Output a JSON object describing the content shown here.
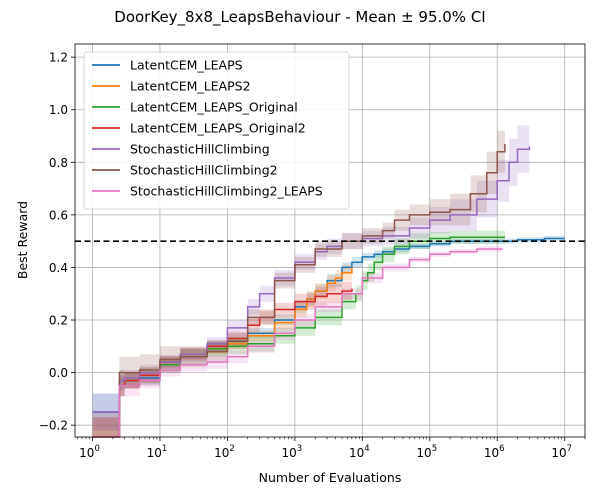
{
  "chart_data": {
    "type": "line",
    "title": "DoorKey_8x8_LeapsBehaviour - Mean ± 95.0% CI",
    "xlabel": "Number of Evaluations",
    "ylabel": "Best Reward",
    "x_scale": "log",
    "xlim": [
      0.55,
      20000000
    ],
    "ylim": [
      -0.245,
      1.25
    ],
    "x_ticks": [
      {
        "value": 1,
        "base": "10",
        "exp": "0"
      },
      {
        "value": 10,
        "base": "10",
        "exp": "1"
      },
      {
        "value": 100,
        "base": "10",
        "exp": "2"
      },
      {
        "value": 1000,
        "base": "10",
        "exp": "3"
      },
      {
        "value": 10000,
        "base": "10",
        "exp": "4"
      },
      {
        "value": 100000,
        "base": "10",
        "exp": "5"
      },
      {
        "value": 1000000,
        "base": "10",
        "exp": "6"
      },
      {
        "value": 10000000,
        "base": "10",
        "exp": "7"
      }
    ],
    "y_ticks": [
      {
        "value": -0.2,
        "label": "−0.2"
      },
      {
        "value": 0.0,
        "label": "0.0"
      },
      {
        "value": 0.2,
        "label": "0.2"
      },
      {
        "value": 0.4,
        "label": "0.4"
      },
      {
        "value": 0.6,
        "label": "0.6"
      },
      {
        "value": 0.8,
        "label": "0.8"
      },
      {
        "value": 1.0,
        "label": "1.0"
      },
      {
        "value": 1.2,
        "label": "1.2"
      }
    ],
    "grid": true,
    "legend_position": "top-left",
    "reference_line": {
      "y": 0.5,
      "style": "dashed",
      "color": "#000000"
    },
    "series": [
      {
        "name": "LatentCEM_LEAPS",
        "color": "#1f77b4",
        "x": [
          1,
          2,
          2.5,
          3,
          5,
          10,
          20,
          50,
          100,
          200,
          500,
          1000,
          1500,
          2000,
          3000,
          5000,
          7000,
          10000,
          15000,
          20000,
          30000,
          50000,
          100000,
          200000,
          500000,
          1000000,
          2000000,
          5000000,
          10000000
        ],
        "y": [
          -0.15,
          -0.15,
          -0.05,
          -0.03,
          -0.02,
          0.04,
          0.07,
          0.1,
          0.12,
          0.15,
          0.2,
          0.25,
          0.28,
          0.31,
          0.35,
          0.4,
          0.42,
          0.44,
          0.45,
          0.46,
          0.47,
          0.48,
          0.49,
          0.5,
          0.5,
          0.5,
          0.505,
          0.51,
          0.51
        ],
        "ci": [
          0.07,
          0.07,
          0.04,
          0.03,
          0.025,
          0.02,
          0.02,
          0.02,
          0.02,
          0.02,
          0.02,
          0.025,
          0.025,
          0.025,
          0.025,
          0.02,
          0.02,
          0.015,
          0.015,
          0.012,
          0.012,
          0.01,
          0.01,
          0.01,
          0.01,
          0.01,
          0.01,
          0.01,
          0.01
        ]
      },
      {
        "name": "LatentCEM_LEAPS2",
        "color": "#ff7f0e",
        "x": [
          1,
          2,
          2.5,
          3,
          5,
          10,
          20,
          50,
          100,
          200,
          500,
          1000,
          1500,
          2000,
          3000,
          4000,
          5000,
          7000
        ],
        "y": [
          -0.25,
          -0.25,
          -0.05,
          -0.03,
          -0.01,
          0.04,
          0.07,
          0.09,
          0.11,
          0.14,
          0.19,
          0.24,
          0.28,
          0.31,
          0.34,
          0.36,
          0.38,
          0.4
        ],
        "ci": [
          0.08,
          0.08,
          0.04,
          0.03,
          0.025,
          0.02,
          0.02,
          0.02,
          0.02,
          0.02,
          0.025,
          0.03,
          0.03,
          0.03,
          0.03,
          0.03,
          0.03,
          0.03
        ]
      },
      {
        "name": "LatentCEM_LEAPS_Original",
        "color": "#2ca02c",
        "x": [
          1,
          2,
          2.5,
          3,
          5,
          10,
          20,
          50,
          100,
          200,
          500,
          1000,
          2000,
          5000,
          8000,
          10000,
          12000,
          15000,
          20000,
          30000,
          50000,
          100000,
          200000,
          500000,
          1000000,
          1300000
        ],
        "y": [
          -0.25,
          -0.25,
          -0.03,
          -0.03,
          -0.01,
          0.03,
          0.06,
          0.09,
          0.1,
          0.11,
          0.14,
          0.17,
          0.21,
          0.27,
          0.3,
          0.35,
          0.38,
          0.42,
          0.45,
          0.48,
          0.5,
          0.51,
          0.515,
          0.515,
          0.515,
          0.515
        ],
        "ci": [
          0.08,
          0.08,
          0.04,
          0.03,
          0.03,
          0.03,
          0.03,
          0.03,
          0.03,
          0.03,
          0.03,
          0.03,
          0.03,
          0.03,
          0.03,
          0.035,
          0.035,
          0.03,
          0.03,
          0.03,
          0.03,
          0.025,
          0.025,
          0.025,
          0.025,
          0.025
        ]
      },
      {
        "name": "LatentCEM_LEAPS_Original2",
        "color": "#d62728",
        "x": [
          1,
          2,
          2.5,
          3,
          5,
          10,
          20,
          50,
          100,
          200,
          300,
          500,
          1000,
          2000,
          3000,
          5000,
          7000
        ],
        "y": [
          -0.25,
          -0.25,
          -0.05,
          -0.03,
          -0.01,
          0.04,
          0.07,
          0.1,
          0.13,
          0.18,
          0.21,
          0.24,
          0.27,
          0.29,
          0.3,
          0.31,
          0.32
        ],
        "ci": [
          0.08,
          0.08,
          0.04,
          0.03,
          0.03,
          0.025,
          0.025,
          0.025,
          0.025,
          0.025,
          0.025,
          0.025,
          0.03,
          0.035,
          0.035,
          0.035,
          0.035
        ]
      },
      {
        "name": "StochasticHillClimbing",
        "color": "#9467bd",
        "x": [
          1,
          2,
          2.5,
          3,
          5,
          10,
          20,
          50,
          100,
          200,
          300,
          500,
          1000,
          2000,
          3000,
          5000,
          7000,
          10000,
          20000,
          50000,
          100000,
          200000,
          500000,
          1000000,
          1500000,
          2000000,
          3000000
        ],
        "y": [
          -0.15,
          -0.15,
          -0.03,
          -0.02,
          0.0,
          0.04,
          0.07,
          0.11,
          0.17,
          0.25,
          0.3,
          0.36,
          0.42,
          0.46,
          0.48,
          0.5,
          0.5,
          0.51,
          0.52,
          0.55,
          0.58,
          0.6,
          0.66,
          0.73,
          0.8,
          0.85,
          0.86
        ],
        "ci": [
          0.07,
          0.07,
          0.04,
          0.03,
          0.03,
          0.025,
          0.025,
          0.025,
          0.03,
          0.03,
          0.03,
          0.03,
          0.03,
          0.03,
          0.03,
          0.03,
          0.03,
          0.03,
          0.035,
          0.04,
          0.05,
          0.06,
          0.07,
          0.08,
          0.09,
          0.09,
          0.1
        ]
      },
      {
        "name": "StochasticHillClimbing2",
        "color": "#8c564b",
        "x": [
          1,
          2,
          2.5,
          3,
          5,
          10,
          20,
          50,
          100,
          200,
          500,
          1000,
          2000,
          5000,
          10000,
          20000,
          30000,
          50000,
          100000,
          200000,
          400000,
          700000,
          1000000,
          1300000
        ],
        "y": [
          -0.25,
          -0.25,
          0.0,
          0.0,
          0.01,
          0.05,
          0.06,
          0.08,
          0.12,
          0.21,
          0.35,
          0.41,
          0.47,
          0.5,
          0.52,
          0.54,
          0.58,
          0.6,
          0.61,
          0.62,
          0.68,
          0.76,
          0.84,
          0.87
        ],
        "ci": [
          0.1,
          0.1,
          0.06,
          0.06,
          0.06,
          0.05,
          0.04,
          0.04,
          0.03,
          0.03,
          0.03,
          0.03,
          0.03,
          0.03,
          0.03,
          0.03,
          0.04,
          0.04,
          0.05,
          0.06,
          0.07,
          0.08,
          0.08,
          0.08
        ]
      },
      {
        "name": "StochasticHillClimbing2_LEAPS",
        "color": "#e377c2",
        "x": [
          1,
          2,
          2.5,
          3,
          5,
          10,
          20,
          50,
          100,
          200,
          500,
          1000,
          2000,
          5000,
          10000,
          20000,
          50000,
          100000,
          200000,
          500000,
          1000000,
          1200000
        ],
        "y": [
          -0.25,
          -0.25,
          -0.05,
          -0.05,
          -0.03,
          0.01,
          0.03,
          0.04,
          0.06,
          0.1,
          0.15,
          0.2,
          0.25,
          0.3,
          0.36,
          0.4,
          0.43,
          0.45,
          0.46,
          0.47,
          0.47,
          0.47
        ],
        "ci": [
          0.08,
          0.08,
          0.04,
          0.04,
          0.03,
          0.025,
          0.025,
          0.025,
          0.025,
          0.025,
          0.025,
          0.025,
          0.02,
          0.02,
          0.02,
          0.015,
          0.01,
          0.01,
          0.01,
          0.01,
          0.01,
          0.01
        ]
      }
    ]
  }
}
